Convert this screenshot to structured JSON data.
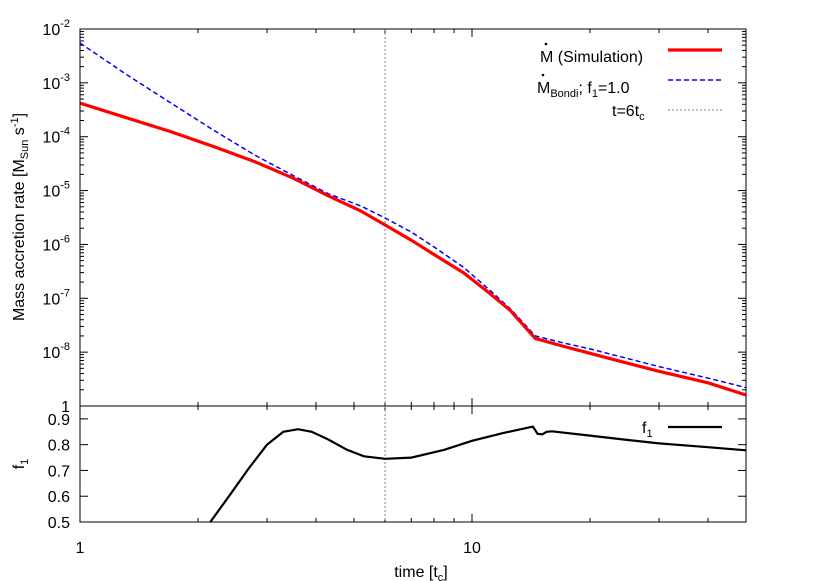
{
  "chart_data": [
    {
      "type": "line",
      "panel": "top",
      "xscale": "log",
      "yscale": "log",
      "xlim": [
        1,
        50
      ],
      "ylim": [
        1e-09,
        0.01
      ],
      "yticks": [
        {
          "value": 0.01,
          "base": "10",
          "exp": "-2"
        },
        {
          "value": 0.001,
          "base": "10",
          "exp": "-3"
        },
        {
          "value": 0.0001,
          "base": "10",
          "exp": "-4"
        },
        {
          "value": 1e-05,
          "base": "10",
          "exp": "-5"
        },
        {
          "value": 1e-06,
          "base": "10",
          "exp": "-6"
        },
        {
          "value": 1e-07,
          "base": "10",
          "exp": "-7"
        },
        {
          "value": 1e-08,
          "base": "10",
          "exp": "-8"
        },
        {
          "value": 1e-09,
          "base": "1",
          "exp": ""
        }
      ],
      "ylabel": {
        "main": "Mass accretion rate [M",
        "sub": "Sun",
        "mid": " s",
        "sup": "-1",
        "end": "]"
      },
      "grid": false,
      "legend": "top-right",
      "series": [
        {
          "name": "Ṁ (Simulation)",
          "legend_text": {
            "main": "M",
            "rest": " (Simulation)"
          },
          "color": "#ff0000",
          "style": "solid",
          "x": [
            1,
            1.3,
            1.7,
            2.2,
            2.8,
            3.5,
            4.3,
            5.2,
            6,
            7,
            8,
            9.5,
            11,
            12.5,
            14.5,
            17,
            20,
            25,
            30,
            40,
            50
          ],
          "y": [
            0.00042,
            0.00023,
            0.000125,
            6.5e-05,
            3.4e-05,
            1.7e-05,
            8e-06,
            4.2e-06,
            2.3e-06,
            1.2e-06,
            6.5e-07,
            3e-07,
            1.3e-07,
            6e-08,
            1.8e-08,
            1.3e-08,
            9.5e-09,
            6.2e-09,
            4.4e-09,
            2.7e-09,
            1.6e-09
          ]
        },
        {
          "name": "Ṁ_Bondi; f_1=1.0",
          "legend_text": {
            "main": "M",
            "sub": "Bondi",
            "mid": "; f",
            "sub2": "1",
            "end": "=1.0"
          },
          "color": "#0000ff",
          "style": "dashed",
          "x": [
            1,
            1.3,
            1.7,
            2.2,
            2.8,
            3.5,
            4.3,
            5.2,
            6,
            7,
            8,
            9.5,
            11,
            12.5,
            14.5,
            17,
            20,
            25,
            30,
            40,
            50
          ],
          "y": [
            0.0055,
            0.0015,
            0.00043,
            0.00013,
            4.5e-05,
            1.9e-05,
            8.7e-06,
            5.2e-06,
            3.1e-06,
            1.7e-06,
            9e-07,
            3.8e-07,
            1.5e-07,
            6.5e-08,
            2e-08,
            1.5e-08,
            1.15e-08,
            7.6e-09,
            5.4e-09,
            3.3e-09,
            2.2e-09
          ]
        },
        {
          "name": "t=6t_c",
          "legend_text": {
            "main": "t=6t",
            "sub": "c"
          },
          "color": "#808080",
          "style": "dotted",
          "vline_x": 6
        }
      ]
    },
    {
      "type": "line",
      "panel": "bottom",
      "xscale": "log",
      "xlim": [
        1,
        50
      ],
      "ylim": [
        0.5,
        0.95
      ],
      "xticks": [
        {
          "value": 1,
          "label": "1"
        },
        {
          "value": 10,
          "label": "10"
        }
      ],
      "yticks": [
        {
          "value": 0.5,
          "label": "0.5"
        },
        {
          "value": 0.6,
          "label": "0.6"
        },
        {
          "value": 0.7,
          "label": "0.7"
        },
        {
          "value": 0.8,
          "label": "0.8"
        },
        {
          "value": 0.9,
          "label": "0.9"
        }
      ],
      "xlabel": {
        "main": "time [t",
        "sub": "c",
        "end": "]"
      },
      "ylabel": {
        "main": "f",
        "sub": "1"
      },
      "legend": "top-right",
      "series": [
        {
          "name": "f_1",
          "legend_text": {
            "main": "f",
            "sub": "1"
          },
          "color": "#000000",
          "style": "solid",
          "x": [
            2.15,
            2.4,
            2.7,
            3.0,
            3.3,
            3.6,
            3.9,
            4.3,
            4.8,
            5.3,
            6.0,
            7.0,
            8.5,
            10,
            12,
            14.3,
            14.7,
            15.1,
            15.5,
            16,
            20,
            25,
            30,
            40,
            50
          ],
          "y": [
            0.5,
            0.6,
            0.71,
            0.8,
            0.85,
            0.86,
            0.85,
            0.82,
            0.78,
            0.755,
            0.745,
            0.75,
            0.78,
            0.815,
            0.845,
            0.87,
            0.842,
            0.84,
            0.85,
            0.852,
            0.835,
            0.818,
            0.805,
            0.79,
            0.778
          ]
        },
        {
          "name": "t=6t_c",
          "color": "#808080",
          "style": "dotted",
          "vline_x": 6
        }
      ]
    }
  ]
}
